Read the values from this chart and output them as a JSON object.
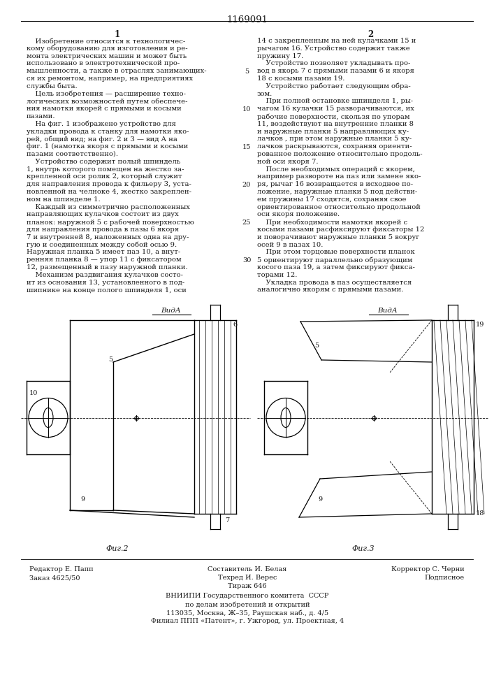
{
  "patent_number": "1169091",
  "col1_header": "1",
  "col2_header": "2",
  "col1_text": [
    "    Изобретение относится к технологичес-",
    "кому оборудованию для изготовления и ре-",
    "монта электрических машин и может быть",
    "использовано в электротехнической про-",
    "мышленности, а также в отраслях занимающих-",
    "ся их ремонтом, например, на предприятиях",
    "службы быта.",
    "    Цель изобретения — расширение техно-",
    "логических возможностей путем обеспече-",
    "ния намотки якорей с прямыми и косыми",
    "пазами.",
    "    На фиг. 1 изображено устройство для",
    "укладки провода к станку для намотки яко-",
    "рей, общий вид; на фиг. 2 и 3 — вид А на",
    "фиг. 1 (намотка якоря с прямыми и косыми",
    "пазами соответственно).",
    "    Устройство содержит полый шпиндель",
    "1, внутрь которого помещен на жестко за-",
    "крепленной оси ролик 2, который служит",
    "для направления провода к фильеру 3, уста-",
    "новленной на челноке 4, жестко закреплен-",
    "ном на шпинделе 1.",
    "    Каждый из симметрично расположенных",
    "направляющих кулачков состоит из двух",
    "планок: наружной 5 с рабочей поверхностью",
    "для направления провода в пазы 6 якоря",
    "7 и внутренней 8, наложенных одна на дру-",
    "гую и соединенных между собой осью 9.",
    "Наружная планка 5 имеет паз 10, а внут-",
    "ренняя планка 8 — упор 11 с фиксатором",
    "12, размещенный в пазу наружной планки.",
    "    Механизм раздвигания кулачков состо-",
    "ит из основания 13, установленного в под-",
    "шипнике на конце полого шпинделя 1, оси"
  ],
  "col2_text": [
    "14 с закрепленным на ней кулачками 15 и",
    "рычагом 16. Устройство содержит также",
    "пружину 17.",
    "    Устройство позволяет укладывать про-",
    "вод в якорь 7 с прямыми пазами 6 и якоря",
    "18 с косыми пазами 19.",
    "    Устройство работает следующим обра-",
    "зом.",
    "    При полной остановке шпинделя 1, ры-",
    "чагом 16 кулачки 15 разворачиваются, их",
    "рабочие поверхности, скользя по упорам",
    "11, воздействуют на внутренние планки 8",
    "и наружные планки 5 направляющих ку-",
    "лачков , при этом наружные планки 5 ку-",
    "лачков раскрываются, сохраняя ориенти-",
    "рованное положение относительно продоль-",
    "ной оси якоря 7.",
    "    После необходимых операций с якорем,",
    "например развороте на паз или замене яко-",
    "ря, рычаг 16 возвращается в исходное по-",
    "ложение, наружные планки 5 под действи-",
    "ем пружины 17 сходятся, сохраняя свое",
    "ориентированное относительно продольной",
    "оси якоря положение.",
    "    При необходимости намотки якорей с",
    "косыми пазами расфиксируют фиксаторы 12",
    "и поворачивают наружные планки 5 вокруг",
    "осей 9 в пазах 10.",
    "    При этом торцовые поверхности планок",
    "5 ориентируют параллельно образующим",
    "косого паза 19, а затем фиксируют фикса-",
    "торами 12.",
    "    Укладка провода в паз осуществляется",
    "аналогично якорям с прямыми пазами."
  ],
  "vid_a_left": "ВидА",
  "vid_a_right": "ВидА",
  "fig2_label": "Фиг.2",
  "fig3_label": "Фиг.3",
  "footer_left_1": "Редактор Е. Папп",
  "footer_left_2": "Заказ 4625/50",
  "footer_center_1": "Составитель И. Белая",
  "footer_center_2": "Техред И. Верес",
  "footer_center_3": "Тираж 646",
  "footer_right_1": "Корректор С. Черни",
  "footer_right_2": "Подписное",
  "footer_vniiipi_1": "ВНИИПИ Государственного комитета  СССР",
  "footer_vniiipi_2": "по делам изобретений и открытий",
  "footer_vniiipi_3": "113035, Москва, Ж–35, Раушская наб., д. 4/5",
  "footer_filial": "Филиал ППП «Патент», г. Ужгород, ул. Проектная, 4",
  "bg_color": "#ffffff",
  "text_color": "#1a1a1a"
}
